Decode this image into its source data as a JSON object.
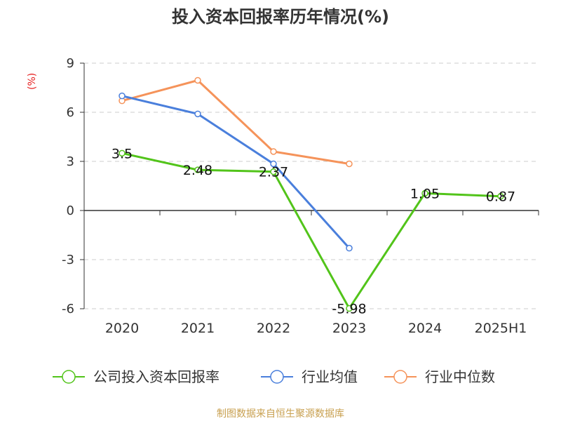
{
  "colors": {
    "title": "#333333",
    "axis_text": "#333333",
    "unit": "#e62020",
    "source": "#c8a050",
    "grid": "#cccccc",
    "axis": "#333333"
  },
  "title": "投入资本回报率历年情况(%)",
  "unit": "(%)",
  "source": "制图数据来自恒生聚源数据库",
  "chart_data": {
    "type": "line",
    "title": "投入资本回报率历年情况(%)",
    "ylabel": "(%)",
    "categories": [
      "2020",
      "2021",
      "2022",
      "2023",
      "2024",
      "2025H1"
    ],
    "y_ticks": [
      9,
      6,
      3,
      0,
      -3,
      -6
    ],
    "ylim": [
      -6,
      9
    ],
    "grid": true,
    "legend_position": "bottom",
    "series": [
      {
        "name": "公司投入资本回报率",
        "color": "#52c41a",
        "values": [
          3.5,
          2.48,
          2.37,
          -5.98,
          1.05,
          0.87
        ],
        "labels": [
          "3.5",
          "2.48",
          "2.37",
          "-5.98",
          "1.05",
          "0.87"
        ]
      },
      {
        "name": "行业均值",
        "color": "#4a7fdc",
        "values": [
          7.0,
          5.9,
          2.85,
          -2.3,
          null,
          null
        ]
      },
      {
        "name": "行业中位数",
        "color": "#f5935a",
        "values": [
          6.7,
          7.95,
          3.6,
          2.85,
          null,
          null
        ]
      }
    ]
  }
}
